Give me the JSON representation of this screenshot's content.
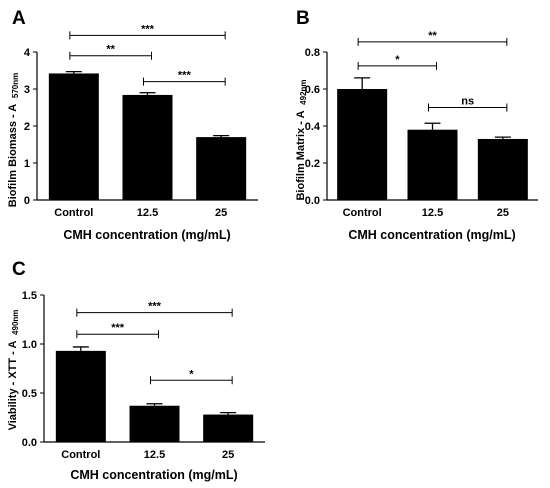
{
  "chart_data": [
    {
      "type": "bar",
      "panel": "A",
      "categories": [
        "Control",
        "12.5",
        "25"
      ],
      "values": [
        3.42,
        2.84,
        1.7
      ],
      "errors": [
        0.05,
        0.06,
        0.04
      ],
      "xlabel": "CMH concentration (mg/mL)",
      "ylabel_main": "Biofilm Biomass - A",
      "ylabel_sub": "570nm",
      "ylim": [
        0,
        4
      ],
      "yticks": [
        "0",
        "1",
        "2",
        "3",
        "4"
      ],
      "bar_color": "#000000",
      "significance": [
        {
          "from": 0,
          "to": 2,
          "label": "***",
          "y": 4.45
        },
        {
          "from": 0,
          "to": 1,
          "label": "**",
          "y": 3.9
        },
        {
          "from": 1,
          "to": 2,
          "label": "***",
          "y": 3.2
        }
      ]
    },
    {
      "type": "bar",
      "panel": "B",
      "categories": [
        "Control",
        "12.5",
        "25"
      ],
      "values": [
        0.6,
        0.38,
        0.33
      ],
      "errors": [
        0.06,
        0.035,
        0.01
      ],
      "xlabel": "CMH concentration (mg/mL)",
      "ylabel_main": "Biofilm Matrix - A",
      "ylabel_sub": "492nm",
      "ylim": [
        0,
        0.8
      ],
      "yticks": [
        "0.0",
        "0.2",
        "0.4",
        "0.6",
        "0.8"
      ],
      "bar_color": "#000000",
      "significance": [
        {
          "from": 0,
          "to": 2,
          "label": "**",
          "y": 0.855
        },
        {
          "from": 0,
          "to": 1,
          "label": "*",
          "y": 0.725
        },
        {
          "from": 1,
          "to": 2,
          "label": "ns",
          "y": 0.5
        }
      ]
    },
    {
      "type": "bar",
      "panel": "C",
      "categories": [
        "Control",
        "12.5",
        "25"
      ],
      "values": [
        0.93,
        0.37,
        0.28
      ],
      "errors": [
        0.04,
        0.02,
        0.02
      ],
      "xlabel": "CMH concentration (mg/mL)",
      "ylabel_main": "Viability - XTT - A",
      "ylabel_sub": "490nm",
      "ylim": [
        0,
        1.5
      ],
      "yticks": [
        "0.0",
        "0.5",
        "1.0",
        "1.5"
      ],
      "bar_color": "#000000",
      "significance": [
        {
          "from": 0,
          "to": 2,
          "label": "***",
          "y": 1.32
        },
        {
          "from": 0,
          "to": 1,
          "label": "***",
          "y": 1.1
        },
        {
          "from": 1,
          "to": 2,
          "label": "*",
          "y": 0.63
        }
      ]
    }
  ]
}
